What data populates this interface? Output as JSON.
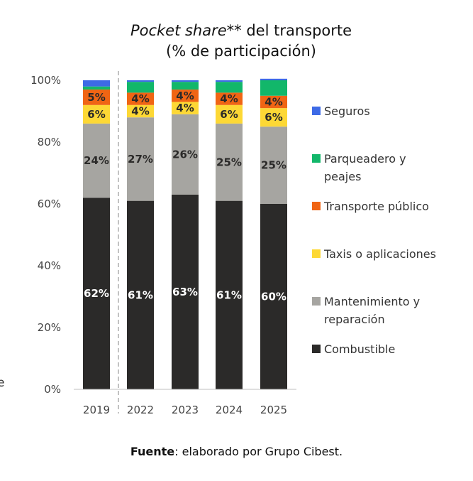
{
  "chart_data": {
    "type": "bar",
    "stacked": true,
    "title_italic": "Pocket share**",
    "title_rest": " del transporte",
    "subtitle": "(% de participación)",
    "categories": [
      "2019",
      "2022",
      "2023",
      "2024",
      "2025"
    ],
    "y_ticks": [
      "0%",
      "20%",
      "40%",
      "60%",
      "80%",
      "100%"
    ],
    "ylim": [
      0,
      100
    ],
    "series": [
      {
        "name": "Combustible",
        "color": "#2b2a29",
        "label_color": "#ffffff",
        "values": [
          62,
          61,
          63,
          61,
          60
        ],
        "labels": [
          "62%",
          "61%",
          "63%",
          "61%",
          "60%"
        ]
      },
      {
        "name": "Mantenimiento y reparación",
        "legend_lines": [
          "Mantenimiento y",
          "reparación"
        ],
        "color": "#a6a5a1",
        "label_color": "#2b2a29",
        "values": [
          24,
          27,
          26,
          25,
          25
        ],
        "labels": [
          "24%",
          "27%",
          "26%",
          "25%",
          "25%"
        ]
      },
      {
        "name": "Taxis o aplicaciones",
        "legend_lines": [
          "Taxis o aplicaciones"
        ],
        "color": "#fdd835",
        "label_color": "#2b2a29",
        "values": [
          6,
          4,
          4,
          6,
          6
        ],
        "labels": [
          "6%",
          "4%",
          "4%",
          "6%",
          "6%"
        ]
      },
      {
        "name": "Transporte público",
        "legend_lines": [
          "Transporte público"
        ],
        "color": "#f06514",
        "label_color": "#2b2a29",
        "values": [
          5,
          4,
          4,
          4,
          4
        ],
        "labels": [
          "5%",
          "4%",
          "4%",
          "4%",
          "4%"
        ]
      },
      {
        "name": "Parqueadero y peajes",
        "legend_lines": [
          "Parqueadero y",
          "peajes"
        ],
        "color": "#12b76a",
        "label_color": "#2b2a29",
        "values": [
          1,
          3.5,
          2.5,
          3.5,
          5
        ],
        "labels": [
          "",
          "",
          "",
          "",
          ""
        ]
      },
      {
        "name": "Seguros",
        "legend_lines": [
          "Seguros"
        ],
        "color": "#3d6ae6",
        "label_color": "#2b2a29",
        "values": [
          2,
          0.5,
          0.5,
          0.5,
          0.5
        ],
        "labels": [
          "",
          "",
          "",
          "",
          ""
        ]
      }
    ],
    "legend_order": [
      "Seguros",
      "Parqueadero y peajes",
      "Transporte público",
      "Taxis o aplicaciones",
      "Mantenimiento y reparación",
      "Combustible"
    ],
    "legend_position": "right",
    "separator_after_category": "2019",
    "grid": false
  },
  "footer": {
    "source_label": "Fuente",
    "source_text": ": elaborado por Grupo Cibest."
  },
  "edge_fragment": "e"
}
